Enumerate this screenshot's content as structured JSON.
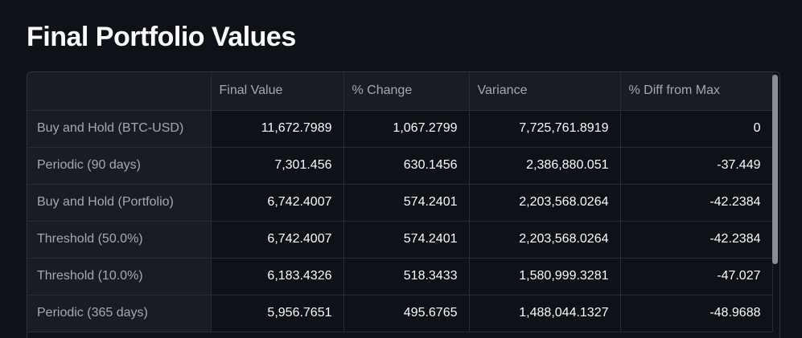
{
  "title": "Final Portfolio Values",
  "table": {
    "columns": [
      "",
      "Final Value",
      "% Change",
      "Variance",
      "% Diff from Max"
    ],
    "rows": [
      {
        "label": "Buy and Hold (BTC-USD)",
        "final_value": "11,672.7989",
        "pct_change": "1,067.2799",
        "variance": "7,725,761.8919",
        "diff_from_max": "0"
      },
      {
        "label": "Periodic (90 days)",
        "final_value": "7,301.456",
        "pct_change": "630.1456",
        "variance": "2,386,880.051",
        "diff_from_max": "-37.449"
      },
      {
        "label": "Buy and Hold (Portfolio)",
        "final_value": "6,742.4007",
        "pct_change": "574.2401",
        "variance": "2,203,568.0264",
        "diff_from_max": "-42.2384"
      },
      {
        "label": "Threshold (50.0%)",
        "final_value": "6,742.4007",
        "pct_change": "574.2401",
        "variance": "2,203,568.0264",
        "diff_from_max": "-42.2384"
      },
      {
        "label": "Threshold (10.0%)",
        "final_value": "6,183.4326",
        "pct_change": "518.3433",
        "variance": "1,580,999.3281",
        "diff_from_max": "-47.027"
      },
      {
        "label": "Periodic (365 days)",
        "final_value": "5,956.7651",
        "pct_change": "495.6765",
        "variance": "1,488,044.1327",
        "diff_from_max": "-48.9688"
      }
    ]
  }
}
